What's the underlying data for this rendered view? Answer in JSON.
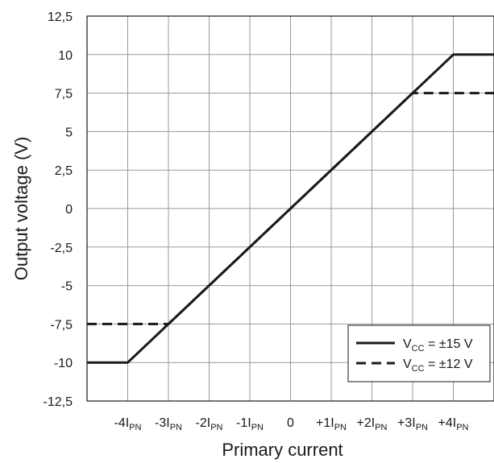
{
  "chart_data": {
    "type": "line",
    "xlabel": "Primary current",
    "ylabel": "Output voltage (V)",
    "xlim": [
      -5,
      5
    ],
    "ylim": [
      -12.5,
      12.5
    ],
    "grid": true,
    "legend_position": "bottom-right",
    "x_ticks": [
      {
        "value": -4,
        "main": "-4I",
        "sub": "PN"
      },
      {
        "value": -3,
        "main": "-3I",
        "sub": "PN"
      },
      {
        "value": -2,
        "main": "-2I",
        "sub": "PN"
      },
      {
        "value": -1,
        "main": "-1I",
        "sub": "PN"
      },
      {
        "value": 0,
        "main": "0",
        "sub": ""
      },
      {
        "value": 1,
        "main": "+1I",
        "sub": "PN"
      },
      {
        "value": 2,
        "main": "+2I",
        "sub": "PN"
      },
      {
        "value": 3,
        "main": "+3I",
        "sub": "PN"
      },
      {
        "value": 4,
        "main": "+4I",
        "sub": "PN"
      }
    ],
    "y_ticks": [
      {
        "value": 12.5,
        "label": "12,5"
      },
      {
        "value": 10,
        "label": "10"
      },
      {
        "value": 7.5,
        "label": "7,5"
      },
      {
        "value": 5,
        "label": "5"
      },
      {
        "value": 2.5,
        "label": "2,5"
      },
      {
        "value": 0,
        "label": "0"
      },
      {
        "value": -2.5,
        "label": "-2,5"
      },
      {
        "value": -5,
        "label": "-5"
      },
      {
        "value": -7.5,
        "label": "-7,5"
      },
      {
        "value": -10,
        "label": "-10"
      },
      {
        "value": -12.5,
        "label": "-12,5"
      }
    ],
    "series": [
      {
        "v": "V",
        "sub": "CC",
        "suffix": " = ±15 V",
        "style": "solid",
        "color": "#1a1a1a",
        "points": [
          [
            -5,
            -10
          ],
          [
            -4,
            -10
          ],
          [
            4,
            10
          ],
          [
            5,
            10
          ]
        ]
      },
      {
        "v": "V",
        "sub": "CC",
        "suffix": " = ±12 V",
        "style": "dashed",
        "color": "#1a1a1a",
        "points": [
          [
            -5,
            -7.5
          ],
          [
            -3,
            -7.5
          ],
          [
            3,
            7.5
          ],
          [
            5,
            7.5
          ]
        ]
      }
    ]
  }
}
